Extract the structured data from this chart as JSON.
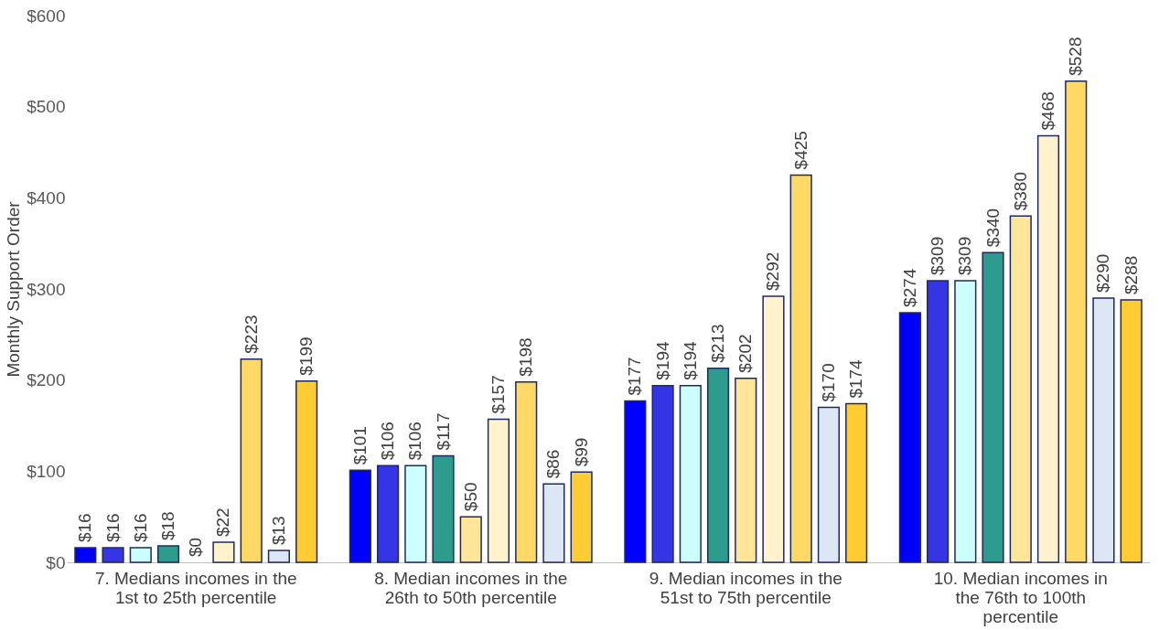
{
  "chart_data": {
    "type": "bar",
    "ylabel": "Monthly Support Order",
    "categories": [
      "7. Medians incomes in the 1st to 25th percentile",
      "8. Median incomes in the 26th to 50th percentile",
      "9. Median incomes in the 51st to 75th percentile",
      "10. Median incomes in the 76th  to 100th percentile"
    ],
    "series": [
      {
        "color": "#0000ff",
        "values": [
          16,
          101,
          177,
          274
        ],
        "value_labels": [
          "$16",
          "$101",
          "$177",
          "$274"
        ]
      },
      {
        "color": "#3535e6",
        "values": [
          16,
          106,
          194,
          309
        ],
        "value_labels": [
          "$16",
          "$106",
          "$194",
          "$309"
        ]
      },
      {
        "color": "#ccffff",
        "values": [
          16,
          106,
          194,
          309
        ],
        "value_labels": [
          "$16",
          "$106",
          "$194",
          "$309"
        ]
      },
      {
        "color": "#2e9c8c",
        "values": [
          18,
          117,
          213,
          340
        ],
        "value_labels": [
          "$18",
          "$117",
          "$213",
          "$340"
        ]
      },
      {
        "color": "#ffe699",
        "values": [
          0,
          50,
          202,
          380
        ],
        "value_labels": [
          "$0",
          "$50",
          "$202",
          "$380"
        ]
      },
      {
        "color": "#fff2cc",
        "values": [
          22,
          157,
          292,
          468
        ],
        "value_labels": [
          "$22",
          "$157",
          "$292",
          "$468"
        ]
      },
      {
        "color": "#ffd966",
        "values": [
          223,
          198,
          425,
          528
        ],
        "value_labels": [
          "$223",
          "$198",
          "$425",
          "$528"
        ]
      },
      {
        "color": "#dde6f5",
        "values": [
          13,
          86,
          170,
          290
        ],
        "value_labels": [
          "$13",
          "$86",
          "$170",
          "$290"
        ]
      },
      {
        "color": "#ffcc33",
        "values": [
          199,
          99,
          174,
          288
        ],
        "value_labels": [
          "$199",
          "$99",
          "$174",
          "$288"
        ]
      }
    ],
    "ylim": [
      0,
      600
    ],
    "yticks": [
      {
        "value": 0,
        "label": "$0"
      },
      {
        "value": 100,
        "label": "$100"
      },
      {
        "value": 200,
        "label": "$200"
      },
      {
        "value": 300,
        "label": "$300"
      },
      {
        "value": 400,
        "label": "$400"
      },
      {
        "value": 500,
        "label": "$500"
      },
      {
        "value": 600,
        "label": "$600"
      }
    ],
    "grid": false,
    "legend": false
  }
}
